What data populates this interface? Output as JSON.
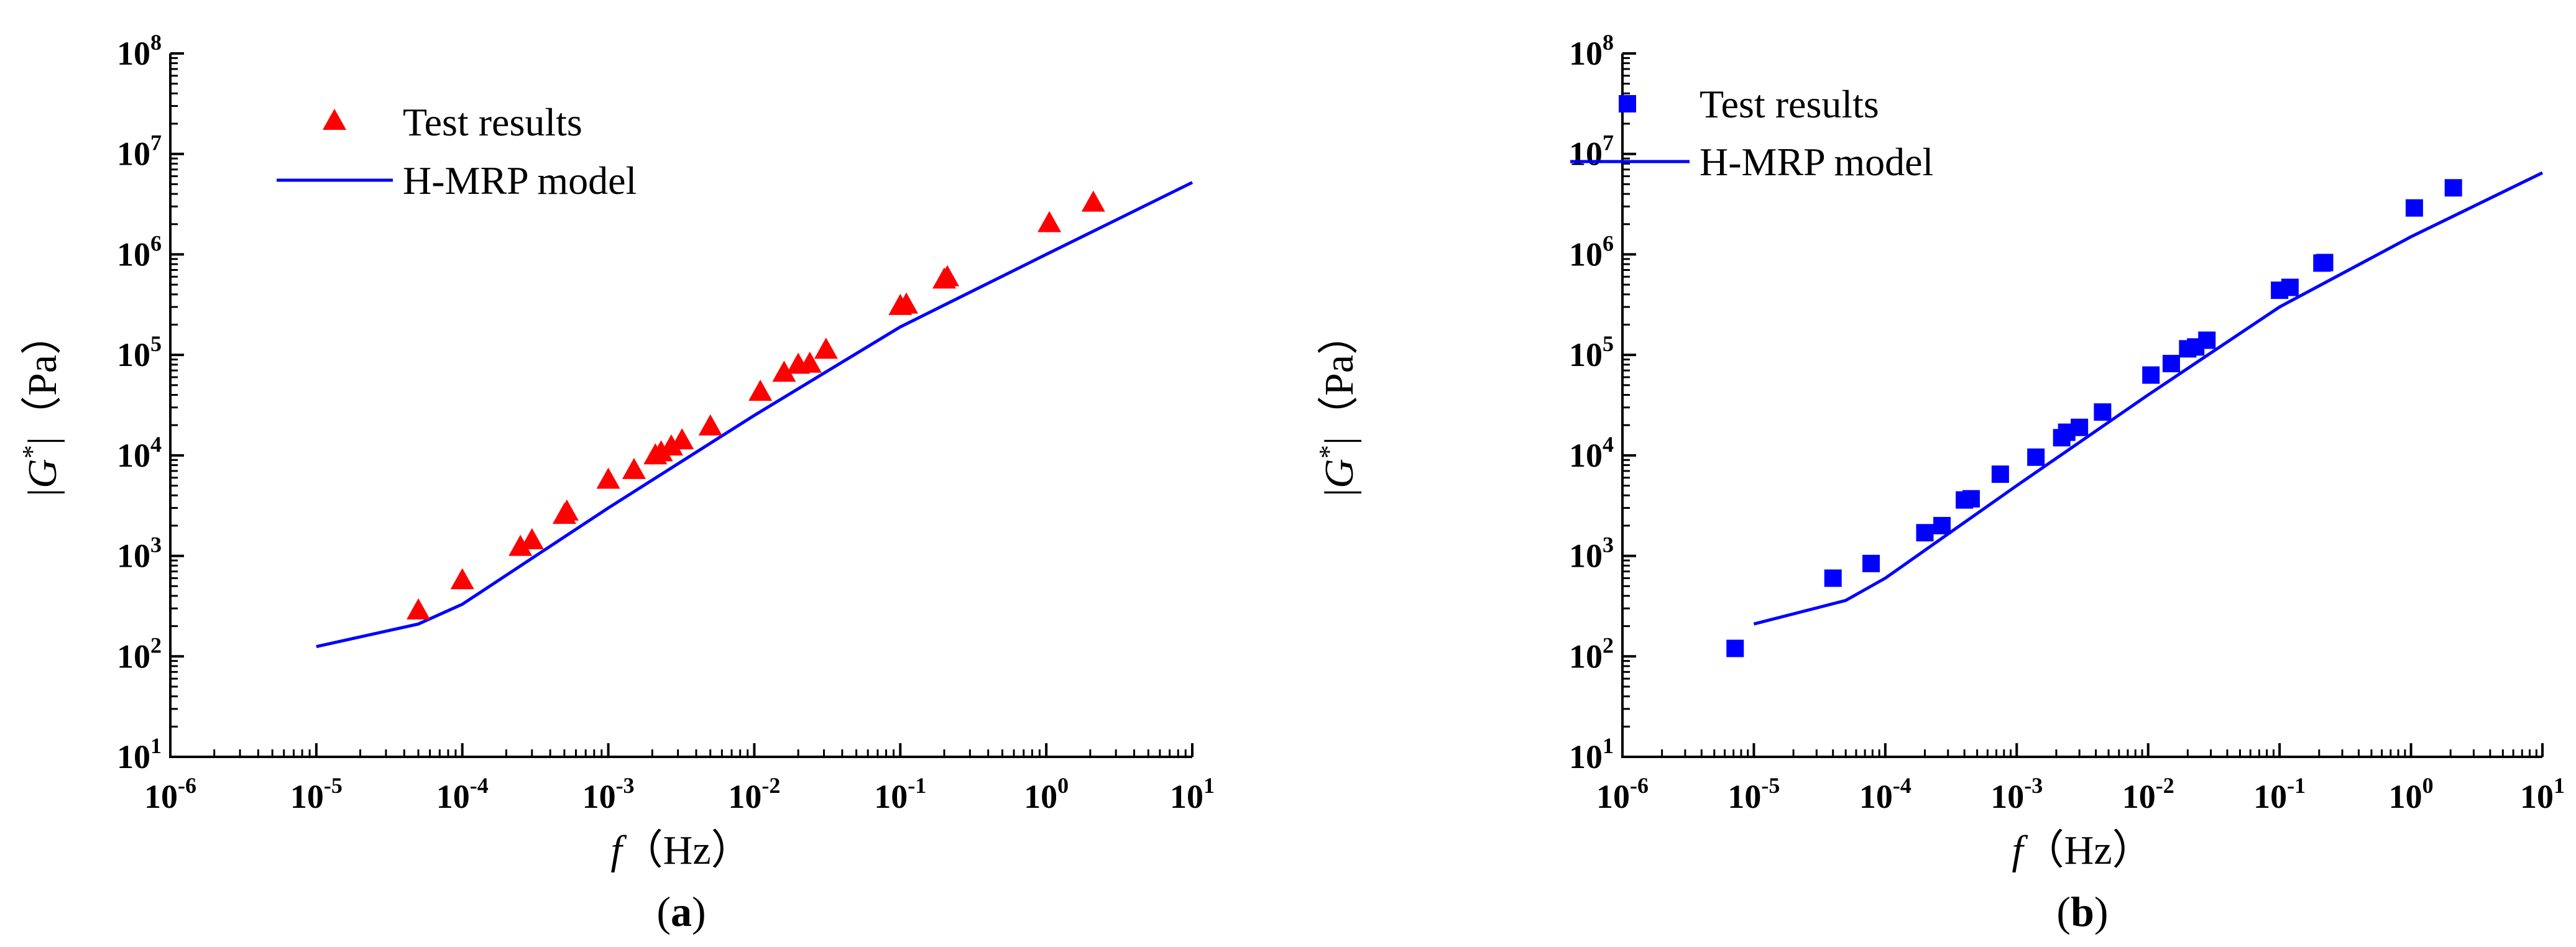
{
  "colors": {
    "panel_a_marker": "#ff0000",
    "panel_b_marker": "#0000ff",
    "model_line": "#0000ff",
    "axis": "#000000"
  },
  "chart_data": [
    {
      "type": "scatter",
      "panel_label": "(a)",
      "panel_label_parts": {
        "open": "(",
        "letter": "a",
        "close": ")"
      },
      "xlabel": "f（Hz）",
      "xlabel_parts": {
        "var": "f",
        "unit": "（Hz）"
      },
      "ylabel": "|G*|（Pa）",
      "ylabel_parts": {
        "bar_open": "|",
        "var": "G",
        "sup": "*",
        "bar_close": "|",
        "unit": "（Pa）"
      },
      "x_scale": "log",
      "y_scale": "log",
      "xlim": [
        1e-06,
        10
      ],
      "ylim": [
        10,
        100000000.0
      ],
      "x_ticks": [
        {
          "base": "10",
          "exp": "-6"
        },
        {
          "base": "10",
          "exp": "-5"
        },
        {
          "base": "10",
          "exp": "-4"
        },
        {
          "base": "10",
          "exp": "-3"
        },
        {
          "base": "10",
          "exp": "-2"
        },
        {
          "base": "10",
          "exp": "-1"
        },
        {
          "base": "10",
          "exp": "0"
        },
        {
          "base": "10",
          "exp": "1"
        }
      ],
      "y_ticks": [
        {
          "base": "10",
          "exp": "1"
        },
        {
          "base": "10",
          "exp": "2"
        },
        {
          "base": "10",
          "exp": "3"
        },
        {
          "base": "10",
          "exp": "4"
        },
        {
          "base": "10",
          "exp": "5"
        },
        {
          "base": "10",
          "exp": "6"
        },
        {
          "base": "10",
          "exp": "7"
        },
        {
          "base": "10",
          "exp": "8"
        }
      ],
      "legend": {
        "position": "top-left",
        "markers_label": "Test results",
        "line_label": "H-MRP model"
      },
      "series": [
        {
          "name": "Test results",
          "kind": "markers",
          "marker": "triangle",
          "color": "#ff0000",
          "x": [
            5e-05,
            0.0001,
            0.00025,
            0.0003,
            0.0005,
            0.00052,
            0.001,
            0.0015,
            0.0021,
            0.0023,
            0.0027,
            0.0032,
            0.005,
            0.011,
            0.016,
            0.02,
            0.024,
            0.031,
            0.1,
            0.11,
            0.2,
            0.21,
            1.05,
            2.1
          ],
          "y": [
            280,
            560,
            1200,
            1400,
            2500,
            2700,
            5600,
            7000,
            9800,
            10500,
            12000,
            13800,
            19000,
            42000,
            65000,
            78000,
            80000,
            110000,
            300000,
            310000,
            550000,
            580000,
            2000000,
            3200000
          ]
        },
        {
          "name": "H-MRP model",
          "kind": "line",
          "color": "#0000ff",
          "x": [
            1e-05,
            5e-05,
            0.0001,
            0.001,
            0.01,
            0.1,
            1,
            10
          ],
          "y": [
            125,
            210,
            330,
            3000,
            25000,
            190000,
            1000000,
            5200000
          ]
        }
      ]
    },
    {
      "type": "scatter",
      "panel_label": "(b)",
      "panel_label_parts": {
        "open": "(",
        "letter": "b",
        "close": ")"
      },
      "xlabel": "f（Hz）",
      "xlabel_parts": {
        "var": "f",
        "unit": "（Hz）"
      },
      "ylabel": "|G*|（Pa）",
      "ylabel_parts": {
        "bar_open": "|",
        "var": "G",
        "sup": "*",
        "bar_close": "|",
        "unit": "（Pa）"
      },
      "x_scale": "log",
      "y_scale": "log",
      "xlim": [
        1e-06,
        10
      ],
      "ylim": [
        10,
        100000000.0
      ],
      "x_ticks": [
        {
          "base": "10",
          "exp": "-6"
        },
        {
          "base": "10",
          "exp": "-5"
        },
        {
          "base": "10",
          "exp": "-4"
        },
        {
          "base": "10",
          "exp": "-3"
        },
        {
          "base": "10",
          "exp": "-2"
        },
        {
          "base": "10",
          "exp": "-1"
        },
        {
          "base": "10",
          "exp": "0"
        },
        {
          "base": "10",
          "exp": "1"
        }
      ],
      "y_ticks": [
        {
          "base": "10",
          "exp": "1"
        },
        {
          "base": "10",
          "exp": "2"
        },
        {
          "base": "10",
          "exp": "3"
        },
        {
          "base": "10",
          "exp": "4"
        },
        {
          "base": "10",
          "exp": "5"
        },
        {
          "base": "10",
          "exp": "6"
        },
        {
          "base": "10",
          "exp": "7"
        },
        {
          "base": "10",
          "exp": "8"
        }
      ],
      "legend": {
        "position": "top-left",
        "markers_label": "Test results",
        "line_label": "H-MRP model"
      },
      "series": [
        {
          "name": "Test results",
          "kind": "markers",
          "marker": "square",
          "color": "#0000ff",
          "x": [
            7.2e-06,
            4e-05,
            7.8e-05,
            0.0002,
            0.00027,
            0.0004,
            0.00045,
            0.00075,
            0.0014,
            0.0022,
            0.0024,
            0.003,
            0.0045,
            0.0105,
            0.015,
            0.02,
            0.023,
            0.028,
            0.1,
            0.12,
            0.21,
            0.22,
            1.06,
            2.1
          ],
          "y": [
            120,
            600,
            840,
            1700,
            2000,
            3600,
            3700,
            6500,
            9600,
            15000,
            17000,
            19000,
            27000,
            63000,
            82000,
            115000,
            120000,
            140000,
            440000,
            470000,
            820000,
            830000,
            2900000,
            4600000
          ]
        },
        {
          "name": "H-MRP model",
          "kind": "line",
          "color": "#0000ff",
          "x": [
            1e-05,
            5e-05,
            0.0001,
            0.001,
            0.01,
            0.1,
            1,
            10
          ],
          "y": [
            210,
            360,
            600,
            5000,
            40000,
            300000,
            1500000,
            6500000
          ]
        }
      ]
    }
  ]
}
